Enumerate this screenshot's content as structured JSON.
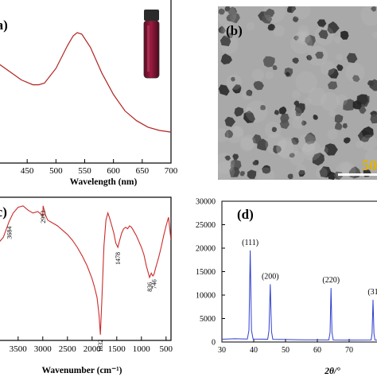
{
  "colors": {
    "uv_line": "#b22222",
    "ir_line": "#cc2a2a",
    "xrd_line": "#2f3fd0",
    "vial_liquid": "#7a1230",
    "tem_bg": "#a9a9a9",
    "scale_text": "#e0b400"
  },
  "panels": {
    "a": {
      "letter": "(a)"
    },
    "b": {
      "letter": "(b)",
      "scale_label": "50"
    },
    "c": {
      "letter": "(c)"
    },
    "d": {
      "letter": "(d)"
    }
  },
  "chart_data": [
    {
      "id": "a",
      "type": "line",
      "xlabel": "Wavelength (nm)",
      "ylabel": "",
      "xlim": [
        400,
        700
      ],
      "ylim": [
        0,
        1
      ],
      "y_ticks_shown": false,
      "xticks": [
        450,
        500,
        550,
        600,
        650,
        700
      ],
      "xtick_labels": [
        "450",
        "500",
        "550",
        "600",
        "650",
        "700"
      ],
      "series": [
        {
          "x": [
            400,
            420,
            440,
            460,
            470,
            480,
            500,
            520,
            530,
            537,
            545,
            560,
            580,
            600,
            620,
            640,
            660,
            680,
            700
          ],
          "y": [
            0.61,
            0.56,
            0.51,
            0.48,
            0.48,
            0.49,
            0.58,
            0.72,
            0.78,
            0.8,
            0.79,
            0.71,
            0.55,
            0.42,
            0.32,
            0.26,
            0.22,
            0.2,
            0.19
          ]
        }
      ]
    },
    {
      "id": "c",
      "type": "line",
      "xlabel": "Wavenumber (cm⁻¹)",
      "ylabel": "",
      "xlim": [
        3900,
        400
      ],
      "ylim": [
        0,
        1
      ],
      "y_ticks_shown": false,
      "xticks": [
        3500,
        3000,
        2500,
        2000,
        1500,
        1000,
        500
      ],
      "xtick_labels": [
        "3500",
        "3000",
        "2500",
        "2000",
        "1500",
        "1000",
        "500"
      ],
      "annotations": [
        {
          "x": 3684,
          "label": "3684"
        },
        {
          "x": 2993,
          "label": "2993"
        },
        {
          "x": 1832,
          "label": "1832"
        },
        {
          "x": 1478,
          "label": "1478"
        },
        {
          "x": 836,
          "label": "836"
        },
        {
          "x": 746,
          "label": "746"
        }
      ],
      "series": [
        {
          "x": [
            3900,
            3800,
            3684,
            3600,
            3500,
            3400,
            3300,
            3200,
            3100,
            3000,
            2993,
            2950,
            2900,
            2800,
            2700,
            2600,
            2500,
            2400,
            2300,
            2200,
            2100,
            2000,
            1950,
            1900,
            1860,
            1832,
            1800,
            1760,
            1720,
            1680,
            1650,
            1600,
            1560,
            1520,
            1478,
            1440,
            1400,
            1360,
            1320,
            1280,
            1240,
            1200,
            1150,
            1100,
            1050,
            1000,
            950,
            900,
            860,
            836,
            800,
            770,
            746,
            700,
            650,
            600,
            550,
            500,
            450,
            400
          ],
          "y": [
            0.68,
            0.72,
            0.83,
            0.89,
            0.93,
            0.94,
            0.91,
            0.89,
            0.9,
            0.87,
            0.94,
            0.88,
            0.84,
            0.82,
            0.8,
            0.77,
            0.74,
            0.7,
            0.65,
            0.59,
            0.52,
            0.43,
            0.37,
            0.3,
            0.18,
            0.04,
            0.3,
            0.66,
            0.84,
            0.89,
            0.86,
            0.8,
            0.75,
            0.68,
            0.65,
            0.7,
            0.75,
            0.78,
            0.79,
            0.78,
            0.8,
            0.79,
            0.76,
            0.73,
            0.69,
            0.65,
            0.6,
            0.52,
            0.47,
            0.44,
            0.47,
            0.45,
            0.46,
            0.52,
            0.58,
            0.65,
            0.73,
            0.8,
            0.86,
            0.7
          ]
        }
      ]
    },
    {
      "id": "d",
      "type": "line",
      "xlabel": "2θ/°",
      "ylabel": "",
      "xlim": [
        30,
        80
      ],
      "ylim": [
        0,
        30000
      ],
      "xticks": [
        30,
        40,
        50,
        60,
        70
      ],
      "xtick_labels": [
        "30",
        "40",
        "50",
        "60",
        "70"
      ],
      "yticks": [
        0,
        5000,
        10000,
        15000,
        20000,
        25000,
        30000
      ],
      "ytick_labels": [
        "0",
        "5000",
        "10000",
        "15000",
        "20000",
        "25000",
        "30000"
      ],
      "peaks": [
        {
          "x": 38.9,
          "label": "(111)"
        },
        {
          "x": 45.2,
          "label": "(200)"
        },
        {
          "x": 64.3,
          "label": "(220)"
        },
        {
          "x": 77.5,
          "label": "(31"
        }
      ],
      "series": [
        {
          "x": [
            30,
            34,
            38.0,
            38.5,
            38.9,
            39.3,
            39.8,
            44.4,
            44.8,
            45.2,
            45.6,
            46.0,
            50,
            55,
            63.6,
            64.0,
            64.3,
            64.6,
            65.0,
            70,
            76.9,
            77.2,
            77.5,
            77.8,
            78.1,
            80
          ],
          "y": [
            600,
            700,
            650,
            2500,
            19500,
            2500,
            620,
            600,
            2500,
            12300,
            2200,
            580,
            520,
            450,
            440,
            2000,
            11500,
            2000,
            430,
            400,
            420,
            1800,
            9000,
            1800,
            420,
            380
          ]
        }
      ]
    }
  ]
}
